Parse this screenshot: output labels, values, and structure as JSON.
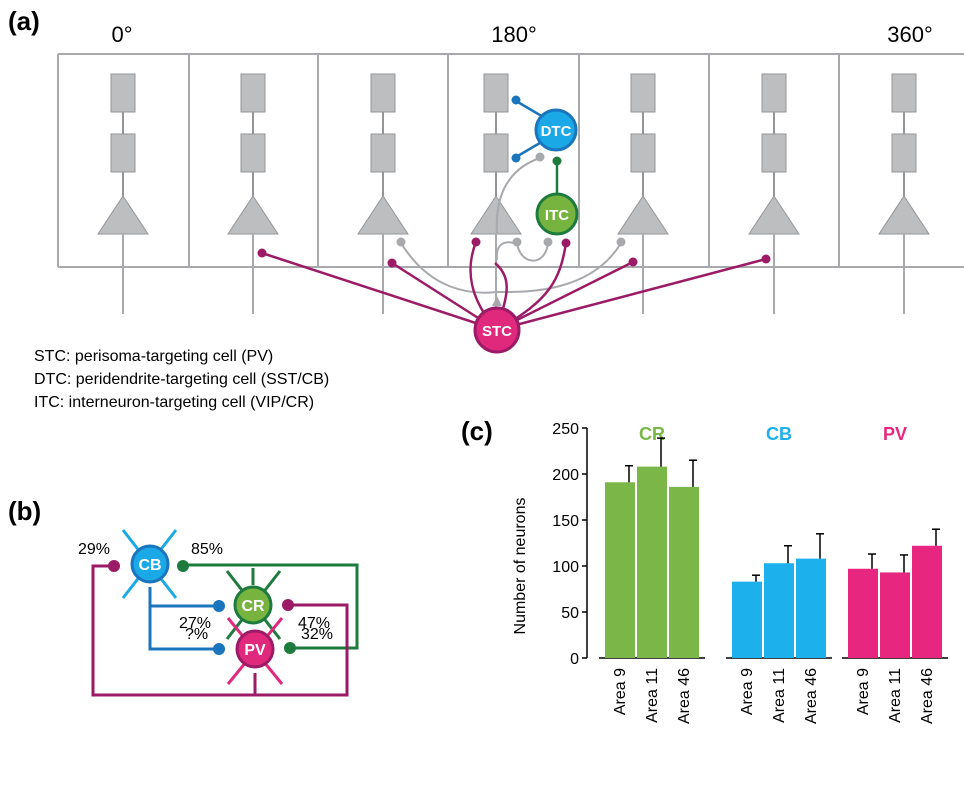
{
  "panel_a": {
    "label": "(a)",
    "angles": [
      "0°",
      "180°",
      "360°"
    ],
    "cells": {
      "stc": "STC",
      "dtc": "DTC",
      "itc": "ITC"
    },
    "legend": [
      "STC: perisoma-targeting cell (PV)",
      "DTC: peridendrite-targeting cell (SST/CB)",
      "ITC: interneuron-targeting cell (VIP/CR)"
    ],
    "colors": {
      "stc": "#9b1b66",
      "dtc": "#1b75bc",
      "itc": "#1e7b3e",
      "gray": "#a7a9ac",
      "stc_fill": "#e0287d",
      "dtc_fill": "#1ba8e6",
      "itc_fill": "#77b43f"
    }
  },
  "panel_b": {
    "label": "(b)",
    "nodes": {
      "cb": "CB",
      "cr": "CR",
      "pv": "PV"
    },
    "percentages": {
      "cb_in": "29%",
      "cb_to_cr_out": "85%",
      "cr_in_blue": "27%",
      "cr_in_magenta": "47%",
      "pv_in_blue": "?%",
      "pv_in_green": "32%"
    }
  },
  "panel_c": {
    "label": "(c)",
    "chart_data": {
      "type": "bar",
      "ylabel": "Number of neurons",
      "ylim": [
        0,
        250
      ],
      "yticks": [
        0,
        50,
        100,
        150,
        200,
        250
      ],
      "groups": [
        {
          "name": "CR",
          "color": "#7ab648",
          "categories": [
            "Area 9",
            "Area 11",
            "Area 46"
          ],
          "values": [
            191,
            208,
            186
          ],
          "errors": [
            18,
            31,
            29
          ]
        },
        {
          "name": "CB",
          "color": "#1cb1ec",
          "categories": [
            "Area 9",
            "Area 11",
            "Area 46"
          ],
          "values": [
            83,
            103,
            108
          ],
          "errors": [
            7,
            19,
            27
          ]
        },
        {
          "name": "PV",
          "color": "#e6267f",
          "categories": [
            "Area 9",
            "Area 11",
            "Area 46"
          ],
          "values": [
            97,
            93,
            122
          ],
          "errors": [
            16,
            19,
            18
          ]
        }
      ]
    }
  }
}
